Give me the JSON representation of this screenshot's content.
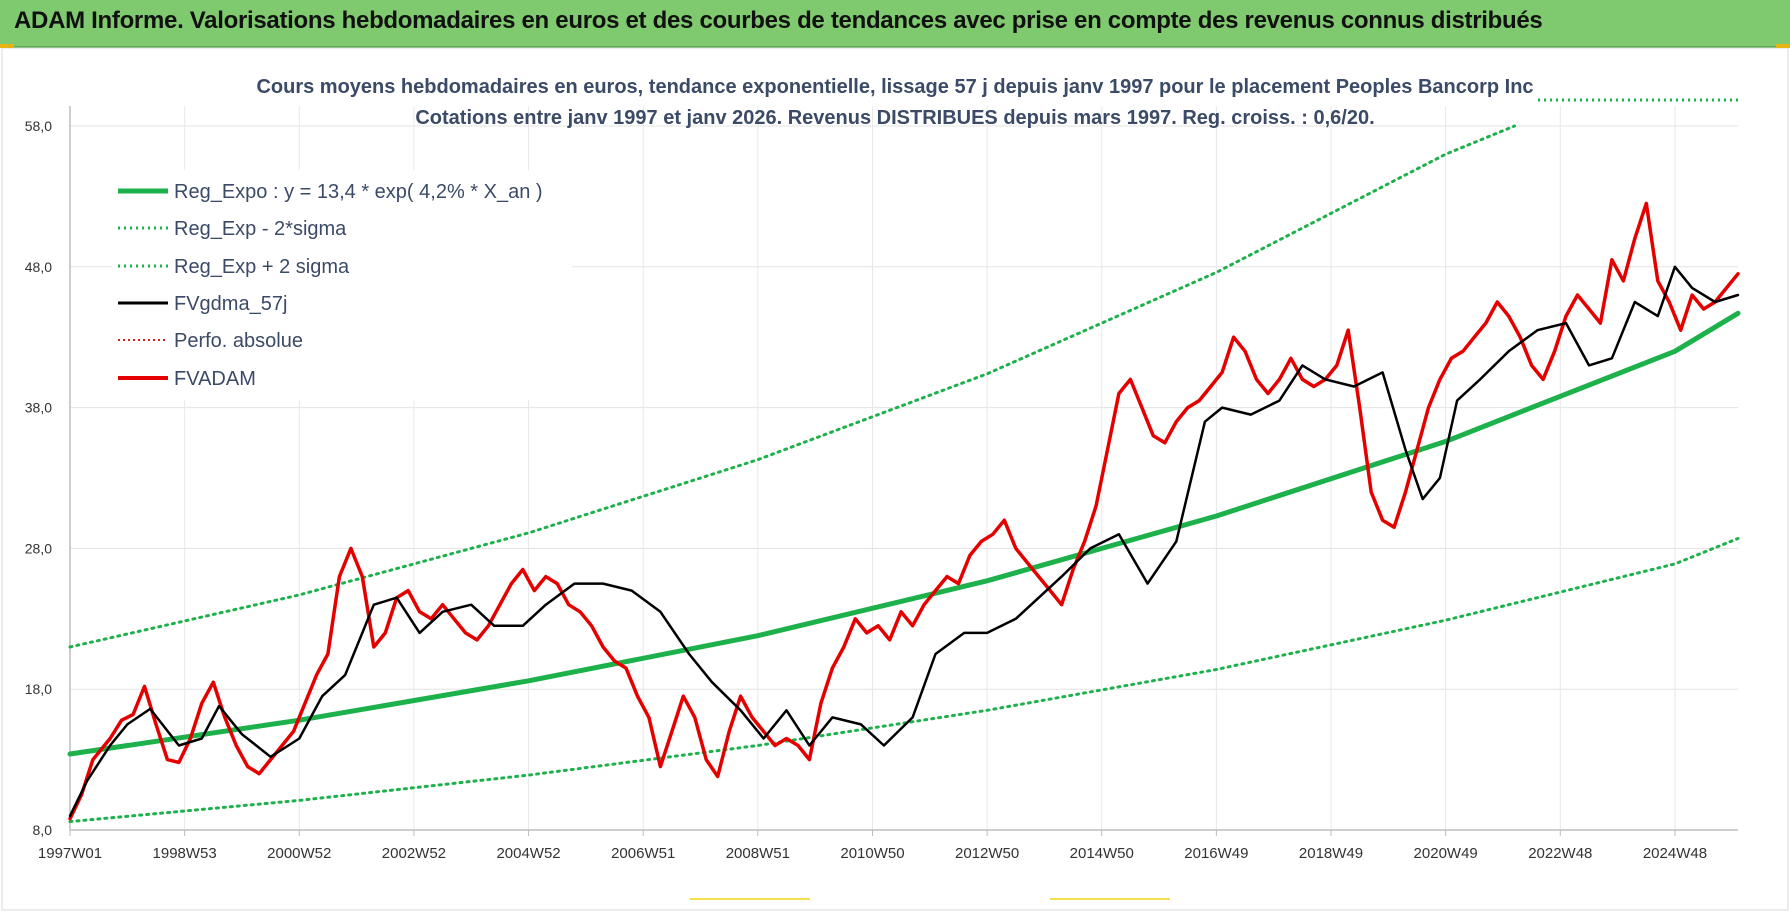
{
  "header": {
    "title": "ADAM Informe. Valorisations hebdomadaires en euros et des courbes de tendances avec prise en compte des revenus connus distribués"
  },
  "chart_data": {
    "type": "line",
    "title_line1": "Cours moyens hebdomadaires en euros, tendance exponentielle, lissage 57 j depuis janv 1997  pour le  placement Peoples Bancorp Inc",
    "title_line2": "Cotations entre janv 1997 et janv 2026. Revenus DISTRIBUES depuis mars 1997.  Reg. croiss. : 0,6/20.",
    "xlabel": "",
    "ylabel": "",
    "ylim": [
      8,
      58
    ],
    "xlim": [
      1997.0,
      2026.1
    ],
    "y_ticks": [
      "8,0",
      "18,0",
      "28,0",
      "38,0",
      "48,0",
      "58,0"
    ],
    "y_tick_values": [
      8,
      18,
      28,
      38,
      48,
      58
    ],
    "x_ticks": [
      "1997W01",
      "1998W53",
      "2000W52",
      "2002W52",
      "2004W52",
      "2006W51",
      "2008W51",
      "2010W50",
      "2012W50",
      "2014W50",
      "2016W49",
      "2018W49",
      "2020W49",
      "2022W48",
      "2024W48"
    ],
    "x_tick_values": [
      1997,
      1999,
      2001,
      2003,
      2005,
      2007,
      2009,
      2011,
      2013,
      2015,
      2017,
      2019,
      2021,
      2023,
      2025
    ],
    "grid": true,
    "legend_position": "top-left",
    "series": [
      {
        "name": "Reg_Expo : y = 13,4 * exp( 4,2% *  X_an )",
        "style": "solid-thick",
        "color": "#1db14b",
        "x": [
          1997,
          2001,
          2005,
          2009,
          2013,
          2017,
          2021,
          2025,
          2026.2
        ],
        "values": [
          13.4,
          15.8,
          18.6,
          21.8,
          25.7,
          30.3,
          35.6,
          42.0,
          44.7
        ]
      },
      {
        "name": "Reg_Exp - 2*sigma",
        "style": "dotted",
        "color": "#1db14b",
        "x": [
          1997,
          2001,
          2005,
          2009,
          2013,
          2017,
          2021,
          2025,
          2026.2
        ],
        "values": [
          8.6,
          10.1,
          11.9,
          14.0,
          16.5,
          19.4,
          22.9,
          26.9,
          28.7
        ]
      },
      {
        "name": "Reg_Exp + 2 sigma",
        "style": "dotted",
        "color": "#1db14b",
        "x": [
          1997,
          2001,
          2005,
          2009,
          2013,
          2017,
          2021,
          2022.2
        ],
        "values": [
          21.0,
          24.7,
          29.1,
          34.3,
          40.4,
          47.6,
          56.0,
          58.0
        ]
      },
      {
        "name": "FVgdma_57j",
        "style": "solid",
        "color": "#000000",
        "x": [
          1997.0,
          1997.3,
          1997.7,
          1998.0,
          1998.4,
          1998.9,
          1999.3,
          1999.6,
          2000.0,
          2000.5,
          2001.0,
          2001.4,
          2001.8,
          2002.3,
          2002.7,
          2003.1,
          2003.5,
          2004.0,
          2004.4,
          2004.9,
          2005.3,
          2005.8,
          2006.3,
          2006.8,
          2007.3,
          2007.8,
          2008.2,
          2008.7,
          2009.1,
          2009.5,
          2009.9,
          2010.3,
          2010.8,
          2011.2,
          2011.7,
          2012.1,
          2012.6,
          2013.0,
          2013.5,
          2013.9,
          2014.3,
          2014.8,
          2015.3,
          2015.8,
          2016.3,
          2016.8,
          2017.1,
          2017.6,
          2018.1,
          2018.5,
          2018.9,
          2019.4,
          2019.9,
          2020.3,
          2020.6,
          2020.9,
          2021.2,
          2021.6,
          2022.1,
          2022.6,
          2023.1,
          2023.5,
          2023.9,
          2024.3,
          2024.7,
          2025.0,
          2025.3,
          2025.7,
          2026.1
        ],
        "values": [
          9.0,
          11.5,
          14.0,
          15.5,
          16.6,
          14.0,
          14.5,
          16.8,
          14.8,
          13.2,
          14.5,
          17.5,
          19.0,
          24.0,
          24.5,
          22.0,
          23.5,
          24.0,
          22.5,
          22.5,
          24.0,
          25.5,
          25.5,
          25.0,
          23.5,
          20.5,
          18.5,
          16.5,
          14.5,
          16.5,
          14.0,
          16.0,
          15.5,
          14.0,
          16.0,
          20.5,
          22.0,
          22.0,
          23.0,
          24.5,
          26.0,
          28.0,
          29.0,
          25.5,
          28.5,
          37.0,
          38.0,
          37.5,
          38.5,
          41.0,
          40.0,
          39.5,
          40.5,
          35.0,
          31.5,
          33.0,
          38.5,
          40.0,
          42.0,
          43.5,
          44.0,
          41.0,
          41.5,
          45.5,
          44.5,
          48.0,
          46.5,
          45.5,
          46.0
        ]
      },
      {
        "name": "Perfo. absolue",
        "style": "dotted",
        "color": "#d62020",
        "x": [],
        "values": []
      },
      {
        "name": "FVADAM",
        "style": "solid-thick",
        "color": "#e50000",
        "x": [
          1997.0,
          1997.2,
          1997.4,
          1997.7,
          1997.9,
          1998.1,
          1998.3,
          1998.5,
          1998.7,
          1998.9,
          1999.1,
          1999.3,
          1999.5,
          1999.7,
          1999.9,
          2000.1,
          2000.3,
          2000.5,
          2000.7,
          2000.9,
          2001.1,
          2001.3,
          2001.5,
          2001.7,
          2001.9,
          2002.1,
          2002.3,
          2002.5,
          2002.7,
          2002.9,
          2003.1,
          2003.3,
          2003.5,
          2003.7,
          2003.9,
          2004.1,
          2004.3,
          2004.5,
          2004.7,
          2004.9,
          2005.1,
          2005.3,
          2005.5,
          2005.7,
          2005.9,
          2006.1,
          2006.3,
          2006.5,
          2006.7,
          2006.9,
          2007.1,
          2007.3,
          2007.5,
          2007.7,
          2007.9,
          2008.1,
          2008.3,
          2008.5,
          2008.7,
          2008.9,
          2009.1,
          2009.3,
          2009.5,
          2009.7,
          2009.9,
          2010.1,
          2010.3,
          2010.5,
          2010.7,
          2010.9,
          2011.1,
          2011.3,
          2011.5,
          2011.7,
          2011.9,
          2012.1,
          2012.3,
          2012.5,
          2012.7,
          2012.9,
          2013.1,
          2013.3,
          2013.5,
          2013.7,
          2013.9,
          2014.1,
          2014.3,
          2014.5,
          2014.7,
          2014.9,
          2015.1,
          2015.3,
          2015.5,
          2015.7,
          2015.9,
          2016.1,
          2016.3,
          2016.5,
          2016.7,
          2016.9,
          2017.1,
          2017.3,
          2017.5,
          2017.7,
          2017.9,
          2018.1,
          2018.3,
          2018.5,
          2018.7,
          2018.9,
          2019.1,
          2019.3,
          2019.5,
          2019.7,
          2019.9,
          2020.1,
          2020.3,
          2020.5,
          2020.7,
          2020.9,
          2021.1,
          2021.3,
          2021.5,
          2021.7,
          2021.9,
          2022.1,
          2022.3,
          2022.5,
          2022.7,
          2022.9,
          2023.1,
          2023.3,
          2023.5,
          2023.7,
          2023.9,
          2024.1,
          2024.3,
          2024.5,
          2024.7,
          2024.9,
          2025.1,
          2025.3,
          2025.5,
          2025.7,
          2025.9,
          2026.1
        ],
        "values": [
          8.8,
          10.5,
          13.0,
          14.5,
          15.8,
          16.2,
          18.2,
          15.5,
          13.0,
          12.8,
          14.5,
          17.0,
          18.5,
          16.0,
          14.0,
          12.5,
          12.0,
          13.0,
          14.0,
          15.0,
          17.0,
          19.0,
          20.5,
          26.0,
          28.0,
          26.0,
          21.0,
          22.0,
          24.5,
          25.0,
          23.5,
          23.0,
          24.0,
          23.0,
          22.0,
          21.5,
          22.5,
          24.0,
          25.5,
          26.5,
          25.0,
          26.0,
          25.5,
          24.0,
          23.5,
          22.5,
          21.0,
          20.0,
          19.5,
          17.5,
          16.0,
          12.5,
          15.0,
          17.5,
          16.0,
          13.0,
          11.8,
          15.0,
          17.5,
          16.0,
          15.0,
          14.0,
          14.5,
          14.0,
          13.0,
          17.0,
          19.5,
          21.0,
          23.0,
          22.0,
          22.5,
          21.5,
          23.5,
          22.5,
          24.0,
          25.0,
          26.0,
          25.5,
          27.5,
          28.5,
          29.0,
          30.0,
          28.0,
          27.0,
          26.0,
          25.0,
          24.0,
          26.5,
          28.5,
          31.0,
          35.0,
          39.0,
          40.0,
          38.0,
          36.0,
          35.5,
          37.0,
          38.0,
          38.5,
          39.5,
          40.5,
          43.0,
          42.0,
          40.0,
          39.0,
          40.0,
          41.5,
          40.0,
          39.5,
          40.0,
          41.0,
          43.5,
          38.0,
          32.0,
          30.0,
          29.5,
          32.0,
          35.0,
          38.0,
          40.0,
          41.5,
          42.0,
          43.0,
          44.0,
          45.5,
          44.5,
          43.0,
          41.0,
          40.0,
          42.0,
          44.5,
          46.0,
          45.0,
          44.0,
          48.5,
          47.0,
          50.0,
          52.5,
          47.0,
          45.5,
          43.5,
          46.0,
          45.0,
          45.5,
          46.5,
          47.5
        ]
      }
    ]
  }
}
